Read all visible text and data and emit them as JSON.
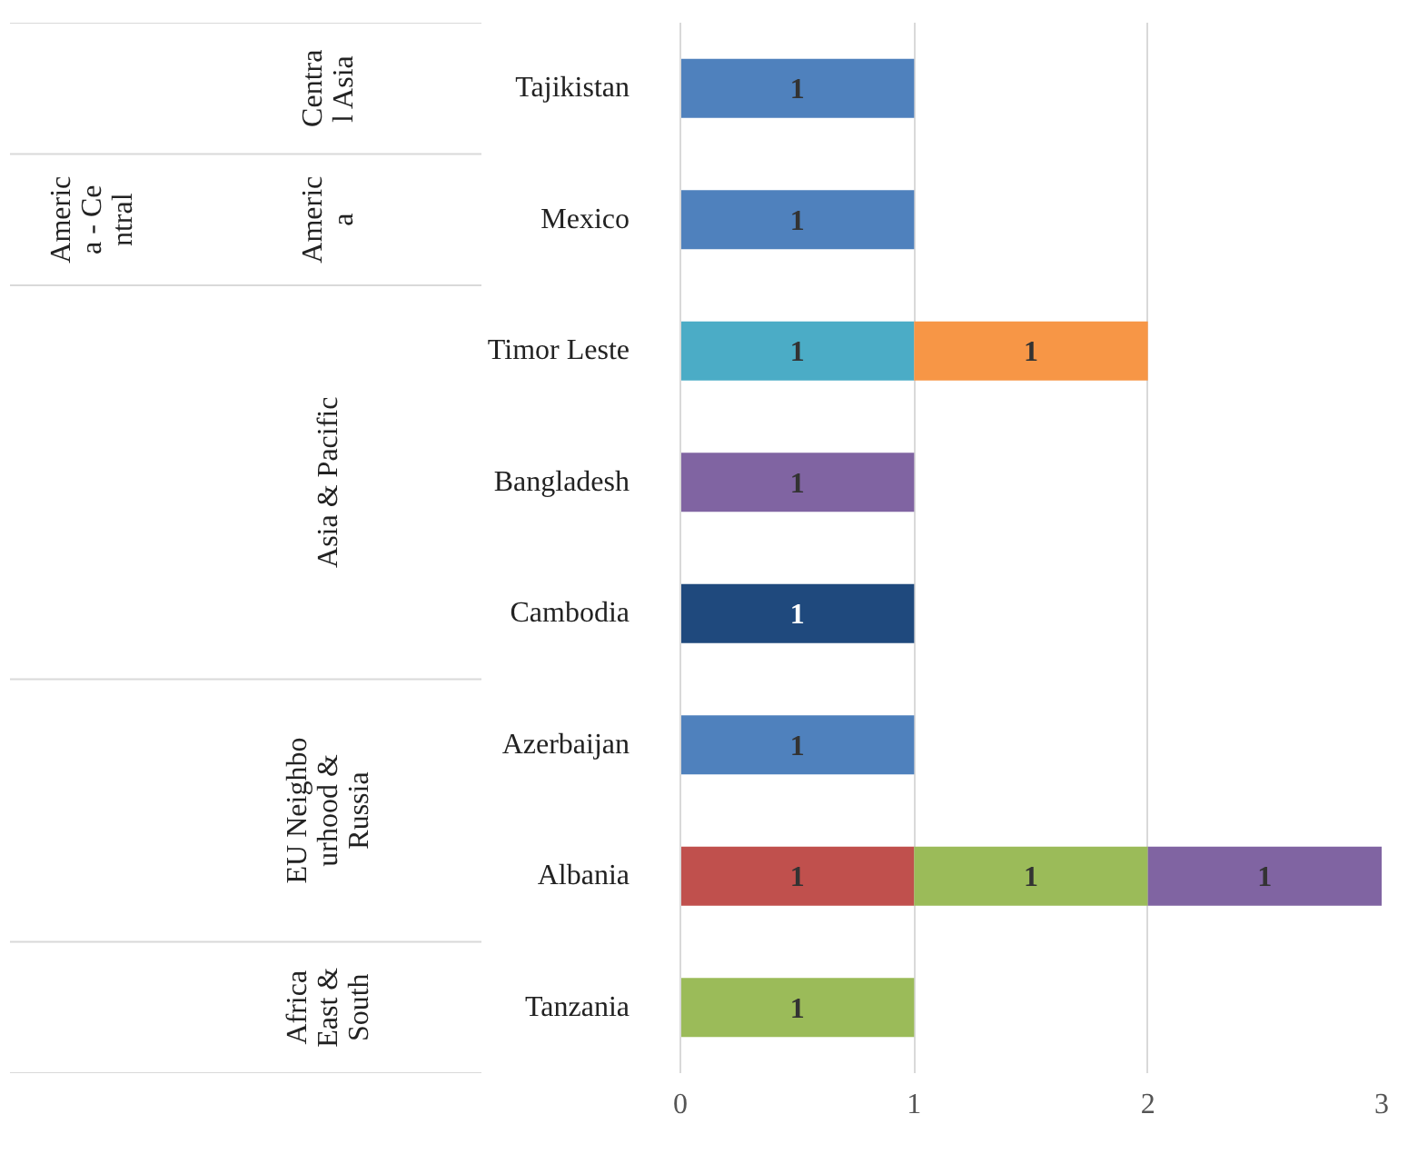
{
  "chart_data": {
    "type": "bar",
    "orientation": "horizontal",
    "stacked": true,
    "data_labels": true,
    "grid": "x",
    "categories": [
      "Tajikistan",
      "Mexico",
      "Timor Leste",
      "Bangladesh",
      "Cambodia",
      "Azerbaijan",
      "Albania",
      "Tanzania"
    ],
    "series": [
      {
        "color": "#4f81bd",
        "values": [
          1,
          1,
          null,
          null,
          null,
          1,
          null,
          null
        ]
      },
      {
        "color": "#1f497d",
        "values": [
          null,
          null,
          null,
          null,
          1,
          null,
          null,
          null
        ]
      },
      {
        "color": "#4bacc6",
        "values": [
          null,
          null,
          1,
          null,
          null,
          null,
          null,
          null
        ]
      },
      {
        "color": "#c0504d",
        "values": [
          null,
          null,
          null,
          null,
          null,
          null,
          1,
          null
        ]
      },
      {
        "color": "#9bbb59",
        "values": [
          null,
          null,
          null,
          null,
          null,
          null,
          1,
          1
        ]
      },
      {
        "color": "#f79646",
        "values": [
          null,
          null,
          1,
          null,
          null,
          null,
          null,
          null
        ]
      },
      {
        "color": "#8064a2",
        "values": [
          null,
          null,
          null,
          1,
          null,
          null,
          1,
          null
        ]
      }
    ],
    "xlim": [
      0,
      3
    ],
    "xticks": [
      0,
      1,
      2,
      3
    ],
    "annotations": [
      "Central Asia",
      "America - Central",
      "America",
      "Asia & Pacific",
      "EU Neighbourhood & Russia",
      "Africa East & South"
    ]
  }
}
